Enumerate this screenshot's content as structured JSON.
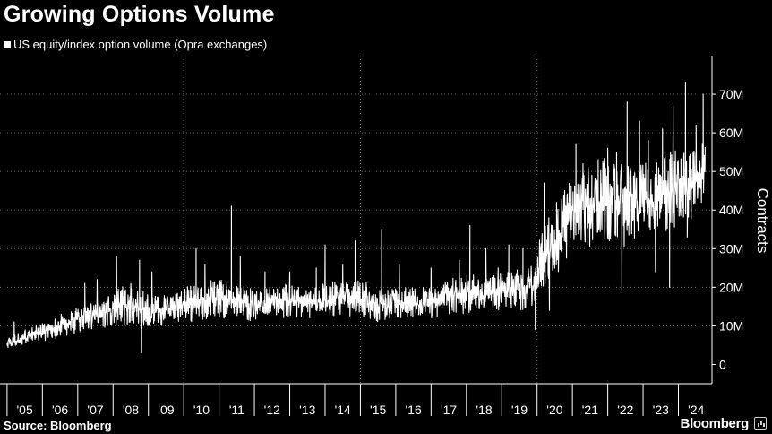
{
  "title": "Growing Options Volume",
  "legend": {
    "label": "US equity/index option volume (Opra exchanges)",
    "color": "#ffffff"
  },
  "source": "Source: Bloomberg",
  "brand": "Bloomberg",
  "colors": {
    "background": "#000000",
    "series": "#ffffff",
    "grid": "#6b6b6b"
  },
  "chart_data": {
    "type": "line",
    "title": "Growing Options Volume",
    "ylabel": "Contracts",
    "ylim": [
      -5,
      80
    ],
    "xlim": [
      2004.8,
      2024.95
    ],
    "y_ticks": [
      {
        "value": 0,
        "label": "0"
      },
      {
        "value": 10,
        "label": "10M"
      },
      {
        "value": 20,
        "label": "20M"
      },
      {
        "value": 30,
        "label": "30M"
      },
      {
        "value": 40,
        "label": "40M"
      },
      {
        "value": 50,
        "label": "50M"
      },
      {
        "value": 60,
        "label": "60M"
      },
      {
        "value": 70,
        "label": "70M"
      }
    ],
    "x_ticks": [
      {
        "value": 2005,
        "label": "'05"
      },
      {
        "value": 2006,
        "label": "'06"
      },
      {
        "value": 2007,
        "label": "'07"
      },
      {
        "value": 2008,
        "label": "'08"
      },
      {
        "value": 2009,
        "label": "'09"
      },
      {
        "value": 2010,
        "label": "'10"
      },
      {
        "value": 2011,
        "label": "'11"
      },
      {
        "value": 2012,
        "label": "'12"
      },
      {
        "value": 2013,
        "label": "'13"
      },
      {
        "value": 2014,
        "label": "'14"
      },
      {
        "value": 2015,
        "label": "'15"
      },
      {
        "value": 2016,
        "label": "'16"
      },
      {
        "value": 2017,
        "label": "'17"
      },
      {
        "value": 2018,
        "label": "'18"
      },
      {
        "value": 2019,
        "label": "'19"
      },
      {
        "value": 2020,
        "label": "'20"
      },
      {
        "value": 2021,
        "label": "'21"
      },
      {
        "value": 2022,
        "label": "'22"
      },
      {
        "value": 2023,
        "label": "'23"
      },
      {
        "value": 2024,
        "label": "'24"
      }
    ],
    "grid_years": [
      2010,
      2015,
      2020
    ],
    "grid": true,
    "legend_position": "top-left",
    "series": [
      {
        "name": "US equity/index option volume (Opra exchanges)",
        "envelope": {
          "x": [
            2005.0,
            2005.5,
            2006.0,
            2006.5,
            2007.0,
            2007.5,
            2008.0,
            2008.5,
            2009.0,
            2009.5,
            2010.0,
            2010.5,
            2011.0,
            2011.5,
            2012.0,
            2012.5,
            2013.0,
            2013.5,
            2014.0,
            2014.5,
            2015.0,
            2015.5,
            2016.0,
            2016.5,
            2017.0,
            2017.5,
            2018.0,
            2018.5,
            2019.0,
            2019.5,
            2019.95,
            2020.0,
            2020.5,
            2021.0,
            2021.5,
            2022.0,
            2022.5,
            2023.0,
            2023.5,
            2024.0,
            2024.5,
            2024.75
          ],
          "low": [
            4,
            5,
            6,
            7,
            8,
            9,
            10,
            10,
            8,
            11,
            11,
            11,
            12,
            12,
            11,
            12,
            12,
            12,
            12,
            12,
            12,
            11,
            12,
            12,
            12,
            13,
            13,
            14,
            14,
            14,
            15,
            19,
            22,
            30,
            30,
            30,
            30,
            34,
            34,
            36,
            38,
            44
          ],
          "high": [
            7,
            9,
            11,
            13,
            15,
            17,
            20,
            22,
            18,
            18,
            20,
            21,
            24,
            21,
            20,
            20,
            21,
            20,
            21,
            22,
            22,
            20,
            20,
            20,
            20,
            22,
            24,
            23,
            24,
            25,
            26,
            35,
            40,
            50,
            52,
            55,
            55,
            52,
            54,
            56,
            56,
            60
          ],
          "spikes": [
            {
              "x": 2005.2,
              "y": 11
            },
            {
              "x": 2007.2,
              "y": 21
            },
            {
              "x": 2007.55,
              "y": 22
            },
            {
              "x": 2008.1,
              "y": 28
            },
            {
              "x": 2008.75,
              "y": 27
            },
            {
              "x": 2008.8,
              "y": 3
            },
            {
              "x": 2009.1,
              "y": 24
            },
            {
              "x": 2010.35,
              "y": 30
            },
            {
              "x": 2010.6,
              "y": 26
            },
            {
              "x": 2011.35,
              "y": 41
            },
            {
              "x": 2011.6,
              "y": 28
            },
            {
              "x": 2012.3,
              "y": 24
            },
            {
              "x": 2013.0,
              "y": 24
            },
            {
              "x": 2013.75,
              "y": 25
            },
            {
              "x": 2014.0,
              "y": 31
            },
            {
              "x": 2014.5,
              "y": 26
            },
            {
              "x": 2014.85,
              "y": 32
            },
            {
              "x": 2015.6,
              "y": 35
            },
            {
              "x": 2016.1,
              "y": 26
            },
            {
              "x": 2017.0,
              "y": 25
            },
            {
              "x": 2017.8,
              "y": 27
            },
            {
              "x": 2018.1,
              "y": 36
            },
            {
              "x": 2018.55,
              "y": 30
            },
            {
              "x": 2018.9,
              "y": 25
            },
            {
              "x": 2019.2,
              "y": 31
            },
            {
              "x": 2019.6,
              "y": 30
            },
            {
              "x": 2019.95,
              "y": 9
            },
            {
              "x": 2020.2,
              "y": 47
            },
            {
              "x": 2020.35,
              "y": 14
            },
            {
              "x": 2020.55,
              "y": 42
            },
            {
              "x": 2020.85,
              "y": 44
            },
            {
              "x": 2021.1,
              "y": 57
            },
            {
              "x": 2021.3,
              "y": 52
            },
            {
              "x": 2021.55,
              "y": 49
            },
            {
              "x": 2021.9,
              "y": 53
            },
            {
              "x": 2022.0,
              "y": 56
            },
            {
              "x": 2022.25,
              "y": 55
            },
            {
              "x": 2022.4,
              "y": 19
            },
            {
              "x": 2022.55,
              "y": 68
            },
            {
              "x": 2022.9,
              "y": 63
            },
            {
              "x": 2023.15,
              "y": 58
            },
            {
              "x": 2023.35,
              "y": 24
            },
            {
              "x": 2023.55,
              "y": 61
            },
            {
              "x": 2023.75,
              "y": 20
            },
            {
              "x": 2023.85,
              "y": 67
            },
            {
              "x": 2024.2,
              "y": 73
            },
            {
              "x": 2024.25,
              "y": 33
            },
            {
              "x": 2024.5,
              "y": 62
            },
            {
              "x": 2024.7,
              "y": 70
            }
          ]
        }
      }
    ]
  }
}
